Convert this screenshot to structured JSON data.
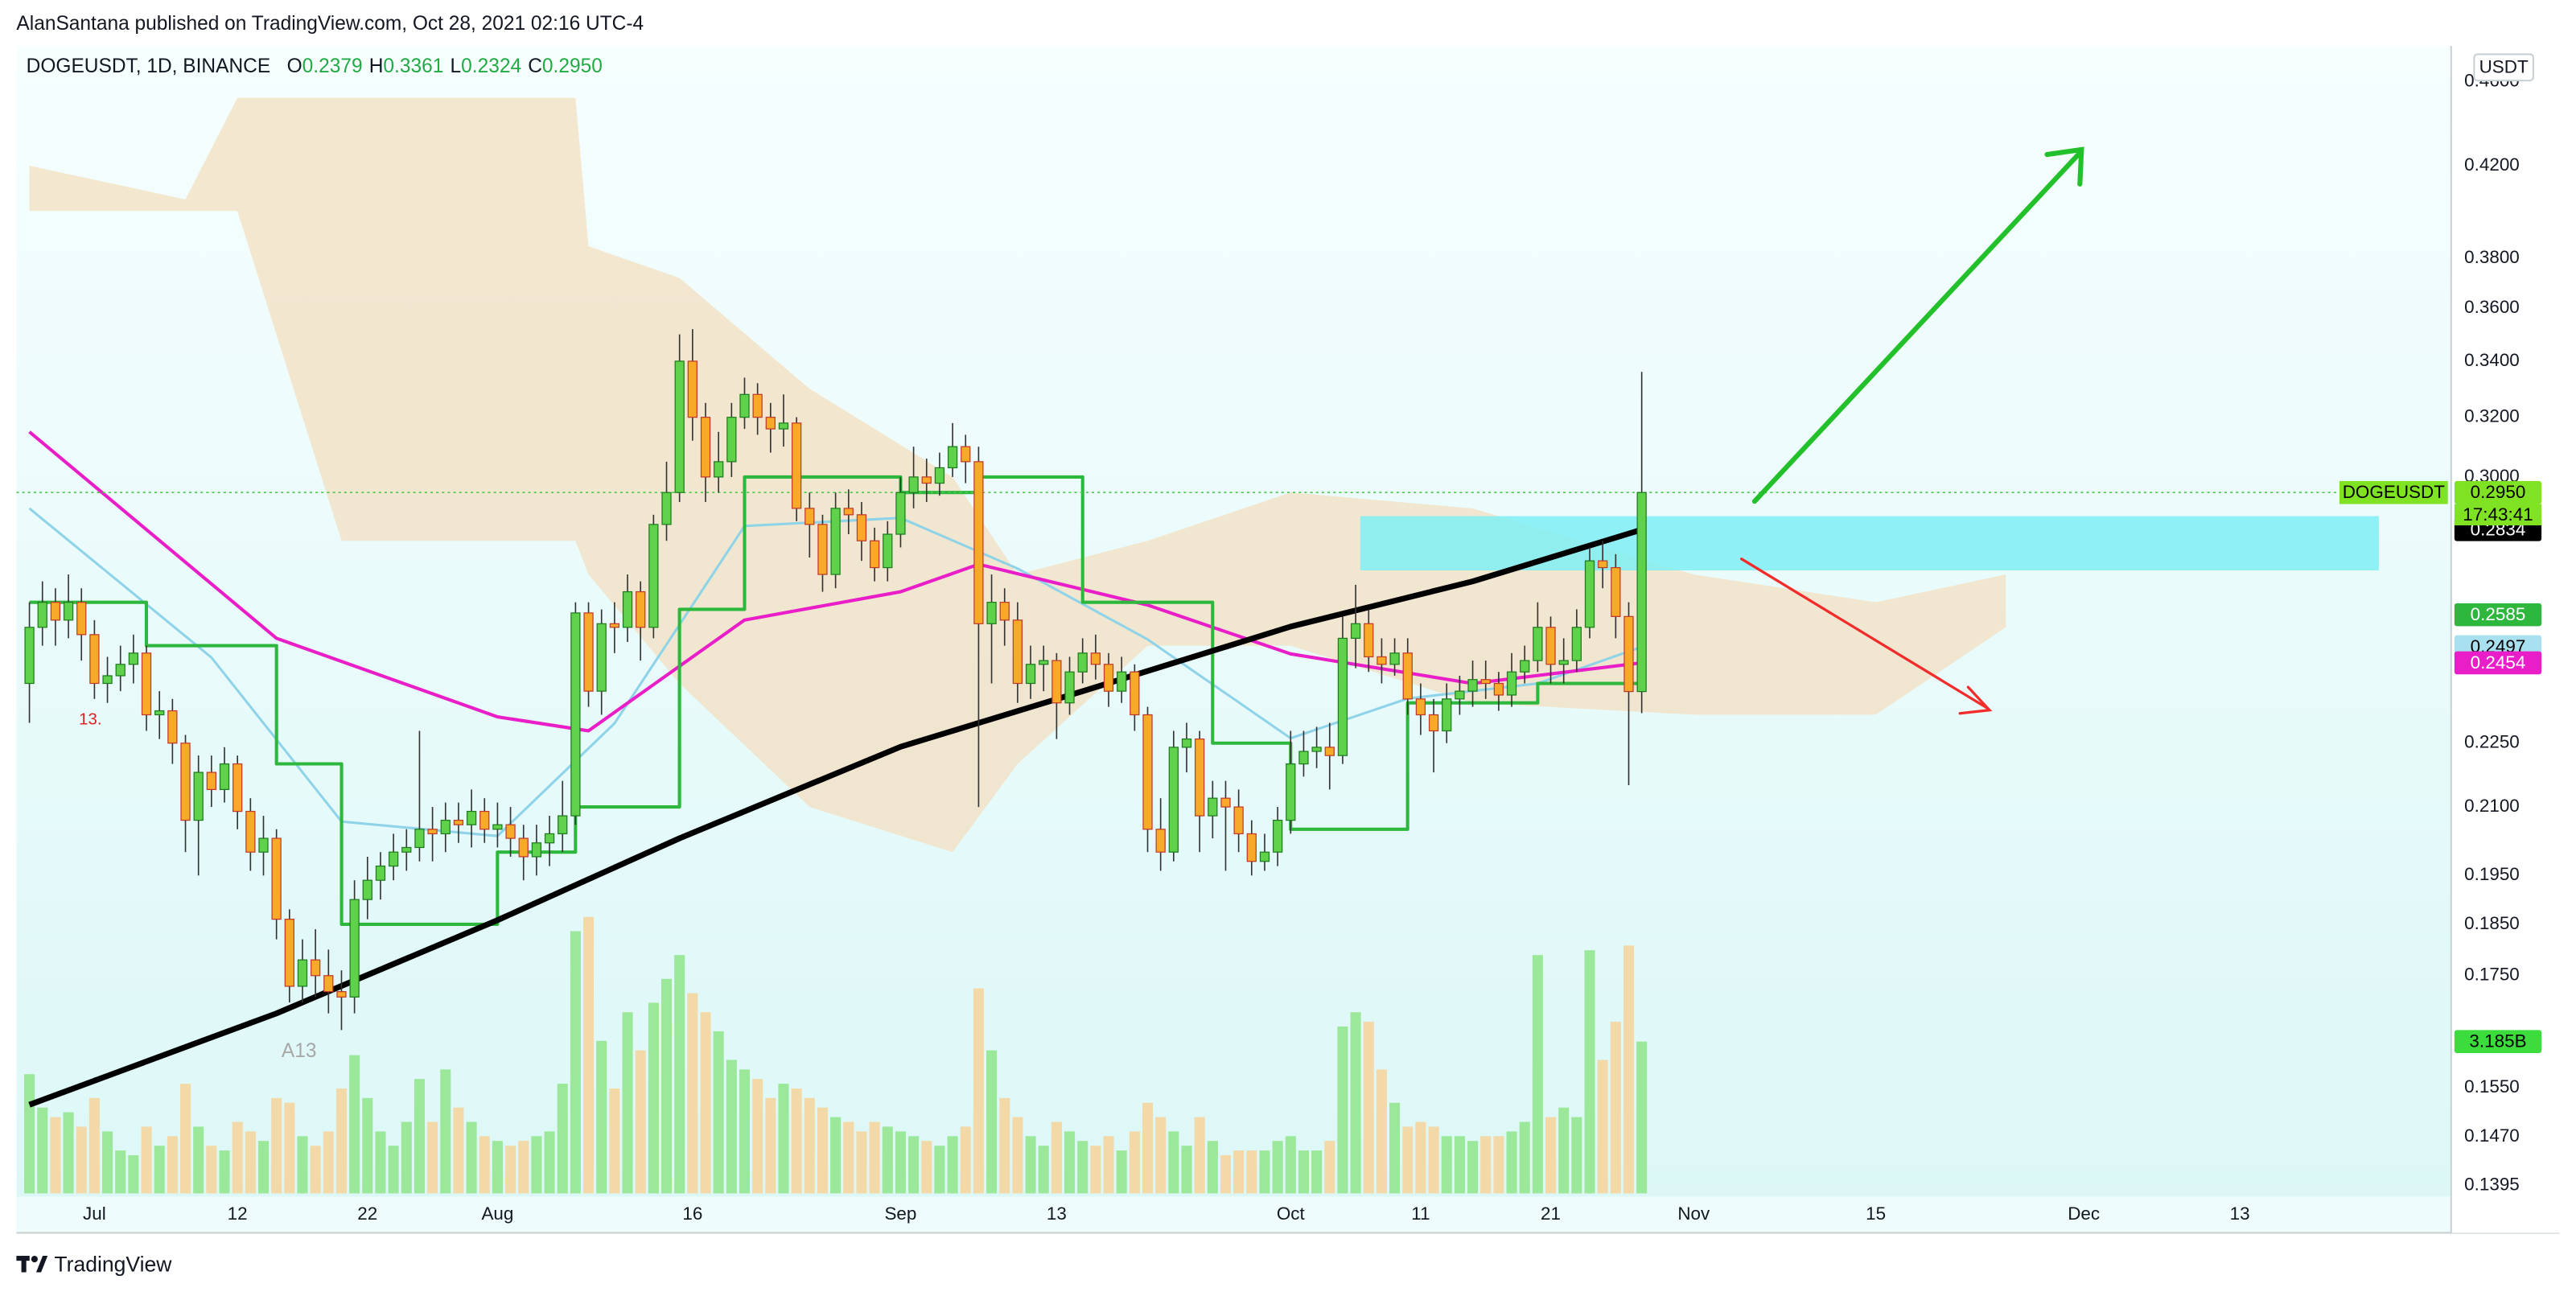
{
  "header": {
    "publisher": "AlanSantana published on TradingView.com, Oct 28, 2021 02:16 UTC-4",
    "symbol": "DOGEUSDT, 1D, BINANCE",
    "ohlc": [
      {
        "key": "O",
        "label": "0.2379"
      },
      {
        "key": "H",
        "label": "0.3361"
      },
      {
        "key": "L",
        "label": "0.2324"
      },
      {
        "key": "C",
        "label": "0.2950"
      }
    ]
  },
  "chart_data": {
    "type": "candlestick",
    "axis_unit": "USDT",
    "x": [
      "2021-06-26",
      "2021-06-27",
      "2021-06-28",
      "2021-06-29",
      "2021-06-30",
      "2021-07-01",
      "2021-07-02",
      "2021-07-03",
      "2021-07-04",
      "2021-07-05",
      "2021-07-06",
      "2021-07-07",
      "2021-07-08",
      "2021-07-09",
      "2021-07-10",
      "2021-07-11",
      "2021-07-12",
      "2021-07-13",
      "2021-07-14",
      "2021-07-15",
      "2021-07-16",
      "2021-07-17",
      "2021-07-18",
      "2021-07-19",
      "2021-07-20",
      "2021-07-21",
      "2021-07-22",
      "2021-07-23",
      "2021-07-24",
      "2021-07-25",
      "2021-07-26",
      "2021-07-27",
      "2021-07-28",
      "2021-07-29",
      "2021-07-30",
      "2021-07-31",
      "2021-08-01",
      "2021-08-02",
      "2021-08-03",
      "2021-08-04",
      "2021-08-05",
      "2021-08-06",
      "2021-08-07",
      "2021-08-08",
      "2021-08-09",
      "2021-08-10",
      "2021-08-11",
      "2021-08-12",
      "2021-08-13",
      "2021-08-14",
      "2021-08-15",
      "2021-08-16",
      "2021-08-17",
      "2021-08-18",
      "2021-08-19",
      "2021-08-20",
      "2021-08-21",
      "2021-08-22",
      "2021-08-23",
      "2021-08-24",
      "2021-08-25",
      "2021-08-26",
      "2021-08-27",
      "2021-08-28",
      "2021-08-29",
      "2021-08-30",
      "2021-08-31",
      "2021-09-01",
      "2021-09-02",
      "2021-09-03",
      "2021-09-04",
      "2021-09-05",
      "2021-09-06",
      "2021-09-07",
      "2021-09-08",
      "2021-09-09",
      "2021-09-10",
      "2021-09-11",
      "2021-09-12",
      "2021-09-13",
      "2021-09-14",
      "2021-09-15",
      "2021-09-16",
      "2021-09-17",
      "2021-09-18",
      "2021-09-19",
      "2021-09-20",
      "2021-09-21",
      "2021-09-22",
      "2021-09-23",
      "2021-09-24",
      "2021-09-25",
      "2021-09-26",
      "2021-09-27",
      "2021-09-28",
      "2021-09-29",
      "2021-09-30",
      "2021-10-01",
      "2021-10-02",
      "2021-10-03",
      "2021-10-04",
      "2021-10-05",
      "2021-10-06",
      "2021-10-07",
      "2021-10-08",
      "2021-10-09",
      "2021-10-10",
      "2021-10-11",
      "2021-10-12",
      "2021-10-13",
      "2021-10-14",
      "2021-10-15",
      "2021-10-16",
      "2021-10-17",
      "2021-10-18",
      "2021-10-19",
      "2021-10-20",
      "2021-10-21",
      "2021-10-22",
      "2021-10-23",
      "2021-10-24",
      "2021-10-25",
      "2021-10-26",
      "2021-10-27",
      "2021-10-28"
    ],
    "open": [
      0.24,
      0.255,
      0.262,
      0.257,
      0.262,
      0.253,
      0.24,
      0.242,
      0.245,
      0.248,
      0.232,
      0.233,
      0.225,
      0.207,
      0.218,
      0.214,
      0.22,
      0.209,
      0.2,
      0.203,
      0.186,
      0.173,
      0.178,
      0.175,
      0.172,
      0.171,
      0.19,
      0.194,
      0.197,
      0.2,
      0.201,
      0.205,
      0.204,
      0.207,
      0.206,
      0.209,
      0.205,
      0.206,
      0.203,
      0.199,
      0.202,
      0.204,
      0.208,
      0.259,
      0.238,
      0.256,
      0.255,
      0.265,
      0.255,
      0.285,
      0.295,
      0.34,
      0.32,
      0.3,
      0.305,
      0.32,
      0.328,
      0.32,
      0.316,
      0.318,
      0.29,
      0.285,
      0.27,
      0.29,
      0.288,
      0.28,
      0.272,
      0.282,
      0.295,
      0.3,
      0.298,
      0.303,
      0.31,
      0.305,
      0.256,
      0.262,
      0.257,
      0.24,
      0.245,
      0.246,
      0.235,
      0.243,
      0.248,
      0.245,
      0.238,
      0.243,
      0.232,
      0.205,
      0.2,
      0.224,
      0.226,
      0.208,
      0.212,
      0.21,
      0.204,
      0.198,
      0.2,
      0.207,
      0.22,
      0.223,
      0.224,
      0.222,
      0.252,
      0.256,
      0.247,
      0.245,
      0.248,
      0.236,
      0.232,
      0.228,
      0.236,
      0.238,
      0.241,
      0.24,
      0.237,
      0.243,
      0.246,
      0.255,
      0.245,
      0.246,
      0.255,
      0.274,
      0.272,
      0.258,
      0.2379
    ],
    "high": [
      0.262,
      0.268,
      0.266,
      0.27,
      0.266,
      0.257,
      0.247,
      0.25,
      0.253,
      0.25,
      0.238,
      0.236,
      0.227,
      0.222,
      0.222,
      0.224,
      0.222,
      0.212,
      0.208,
      0.205,
      0.188,
      0.182,
      0.184,
      0.18,
      0.176,
      0.194,
      0.199,
      0.2,
      0.204,
      0.205,
      0.228,
      0.21,
      0.211,
      0.211,
      0.214,
      0.212,
      0.211,
      0.21,
      0.206,
      0.206,
      0.208,
      0.216,
      0.262,
      0.262,
      0.26,
      0.262,
      0.27,
      0.268,
      0.288,
      0.305,
      0.35,
      0.352,
      0.325,
      0.315,
      0.325,
      0.334,
      0.332,
      0.325,
      0.328,
      0.32,
      0.295,
      0.288,
      0.295,
      0.296,
      0.292,
      0.284,
      0.286,
      0.3,
      0.31,
      0.306,
      0.308,
      0.318,
      0.314,
      0.31,
      0.27,
      0.266,
      0.262,
      0.25,
      0.25,
      0.248,
      0.247,
      0.252,
      0.253,
      0.248,
      0.247,
      0.245,
      0.234,
      0.212,
      0.228,
      0.23,
      0.228,
      0.216,
      0.216,
      0.214,
      0.207,
      0.204,
      0.21,
      0.228,
      0.228,
      0.229,
      0.23,
      0.258,
      0.267,
      0.26,
      0.252,
      0.252,
      0.252,
      0.24,
      0.236,
      0.24,
      0.242,
      0.246,
      0.246,
      0.243,
      0.248,
      0.25,
      0.262,
      0.258,
      0.252,
      0.26,
      0.278,
      0.28,
      0.276,
      0.262,
      0.3361
    ],
    "low": [
      0.23,
      0.25,
      0.25,
      0.252,
      0.246,
      0.236,
      0.235,
      0.238,
      0.24,
      0.228,
      0.226,
      0.22,
      0.2,
      0.195,
      0.21,
      0.211,
      0.205,
      0.196,
      0.195,
      0.182,
      0.17,
      0.17,
      0.171,
      0.168,
      0.165,
      0.168,
      0.186,
      0.19,
      0.194,
      0.196,
      0.198,
      0.198,
      0.2,
      0.202,
      0.201,
      0.202,
      0.201,
      0.199,
      0.194,
      0.195,
      0.197,
      0.2,
      0.206,
      0.234,
      0.232,
      0.248,
      0.251,
      0.246,
      0.252,
      0.28,
      0.292,
      0.312,
      0.292,
      0.295,
      0.3,
      0.316,
      0.314,
      0.308,
      0.31,
      0.286,
      0.275,
      0.265,
      0.266,
      0.282,
      0.274,
      0.268,
      0.268,
      0.278,
      0.29,
      0.292,
      0.294,
      0.3,
      0.298,
      0.21,
      0.24,
      0.25,
      0.235,
      0.236,
      0.238,
      0.226,
      0.232,
      0.24,
      0.241,
      0.234,
      0.235,
      0.228,
      0.2,
      0.196,
      0.198,
      0.218,
      0.2,
      0.203,
      0.196,
      0.2,
      0.195,
      0.196,
      0.197,
      0.204,
      0.217,
      0.219,
      0.214,
      0.22,
      0.244,
      0.243,
      0.24,
      0.242,
      0.232,
      0.227,
      0.218,
      0.225,
      0.232,
      0.234,
      0.236,
      0.233,
      0.234,
      0.24,
      0.243,
      0.24,
      0.24,
      0.243,
      0.252,
      0.266,
      0.252,
      0.215,
      0.2324
    ],
    "close": [
      0.255,
      0.262,
      0.257,
      0.262,
      0.253,
      0.24,
      0.242,
      0.245,
      0.248,
      0.232,
      0.233,
      0.225,
      0.207,
      0.218,
      0.214,
      0.22,
      0.209,
      0.2,
      0.203,
      0.186,
      0.173,
      0.178,
      0.175,
      0.172,
      0.171,
      0.19,
      0.194,
      0.197,
      0.2,
      0.201,
      0.205,
      0.204,
      0.207,
      0.206,
      0.209,
      0.205,
      0.206,
      0.203,
      0.199,
      0.202,
      0.204,
      0.208,
      0.259,
      0.238,
      0.256,
      0.255,
      0.265,
      0.255,
      0.285,
      0.295,
      0.34,
      0.32,
      0.3,
      0.305,
      0.32,
      0.328,
      0.32,
      0.316,
      0.318,
      0.29,
      0.285,
      0.27,
      0.29,
      0.288,
      0.28,
      0.272,
      0.282,
      0.295,
      0.3,
      0.298,
      0.303,
      0.31,
      0.305,
      0.256,
      0.262,
      0.257,
      0.24,
      0.245,
      0.246,
      0.235,
      0.243,
      0.248,
      0.245,
      0.238,
      0.243,
      0.232,
      0.205,
      0.2,
      0.224,
      0.226,
      0.208,
      0.212,
      0.21,
      0.204,
      0.198,
      0.2,
      0.207,
      0.22,
      0.223,
      0.224,
      0.222,
      0.252,
      0.256,
      0.247,
      0.245,
      0.248,
      0.236,
      0.232,
      0.228,
      0.236,
      0.238,
      0.241,
      0.24,
      0.237,
      0.243,
      0.246,
      0.255,
      0.245,
      0.246,
      0.255,
      0.274,
      0.272,
      0.258,
      0.2379,
      0.295
    ],
    "up_color": "#5fd14a",
    "down_color": "#f7a928",
    "up_border": "#1e7a1e",
    "down_border": "#c0392b",
    "wick_color": "#333333",
    "ylim": [
      0.1383,
      0.4763
    ],
    "log_scale": true,
    "grid": false,
    "yticks": [
      0.1395,
      {
        "value": 0.147,
        "label": "0.1470"
      },
      {
        "value": 0.155,
        "label": "0.1550"
      },
      {
        "value": 0.175,
        "label": "0.1750"
      },
      {
        "value": 0.185,
        "label": "0.1850"
      },
      {
        "value": 0.195,
        "label": "0.1950"
      },
      {
        "value": 0.21,
        "label": "0.2100"
      },
      {
        "value": 0.225,
        "label": "0.2250"
      },
      {
        "value": 0.3,
        "label": "0.3000"
      },
      {
        "value": 0.32,
        "label": "0.3200"
      },
      {
        "value": 0.34,
        "label": "0.3400"
      },
      {
        "value": 0.36,
        "label": "0.3600"
      },
      {
        "value": 0.38,
        "label": "0.3800"
      },
      {
        "value": 0.42,
        "label": "0.4200"
      },
      {
        "value": 0.46,
        "label": "0.4600"
      }
    ],
    "xlim": [
      "2021-06-25",
      "2021-12-29"
    ],
    "xticks": [
      {
        "value": "2021-07-01",
        "label": "Jul"
      },
      {
        "value": "2021-07-12",
        "label": "12"
      },
      {
        "value": "2021-07-22",
        "label": "22"
      },
      {
        "value": "2021-08-01",
        "label": "Aug"
      },
      {
        "value": "2021-08-16",
        "label": "16"
      },
      {
        "value": "2021-09-01",
        "label": "Sep"
      },
      {
        "value": "2021-09-13",
        "label": "13"
      },
      {
        "value": "2021-10-01",
        "label": "Oct"
      },
      {
        "value": "2021-10-11",
        "label": "11"
      },
      {
        "value": "2021-10-21",
        "label": "21"
      },
      {
        "value": "2021-11-01",
        "label": "Nov"
      },
      {
        "value": "2021-11-15",
        "label": "15"
      },
      {
        "value": "2021-12-01",
        "label": "Dec"
      },
      {
        "value": "2021-12-13",
        "label": "13"
      }
    ],
    "last_price": {
      "name": "DOGEUSDT",
      "label": "0.2950",
      "countdown": "17:43:41",
      "color": "#7fe324"
    },
    "volume": {
      "values": [
        2.5,
        1.8,
        1.6,
        1.7,
        1.4,
        2.0,
        1.3,
        0.9,
        0.8,
        1.4,
        1.0,
        1.2,
        2.3,
        1.4,
        1.0,
        0.9,
        1.5,
        1.3,
        1.1,
        2.0,
        1.9,
        1.2,
        1.0,
        1.3,
        2.2,
        2.9,
        2.0,
        1.3,
        1.0,
        1.5,
        2.4,
        1.5,
        2.6,
        1.8,
        1.5,
        1.2,
        1.1,
        1.0,
        1.1,
        1.2,
        1.3,
        2.3,
        5.5,
        5.8,
        3.2,
        2.2,
        3.8,
        3.0,
        4.0,
        4.5,
        5.0,
        4.2,
        3.8,
        3.4,
        2.8,
        2.6,
        2.4,
        2.0,
        2.3,
        2.2,
        2.0,
        1.8,
        1.6,
        1.5,
        1.3,
        1.5,
        1.4,
        1.3,
        1.2,
        1.1,
        1.0,
        1.2,
        1.4,
        4.3,
        3.0,
        2.0,
        1.6,
        1.2,
        1.0,
        1.5,
        1.3,
        1.1,
        1.0,
        1.2,
        0.9,
        1.3,
        1.9,
        1.6,
        1.3,
        1.0,
        1.6,
        1.1,
        0.8,
        0.9,
        0.9,
        0.9,
        1.1,
        1.2,
        0.9,
        0.9,
        1.1,
        3.5,
        3.8,
        3.6,
        2.6,
        1.9,
        1.4,
        1.5,
        1.4,
        1.2,
        1.2,
        1.1,
        1.2,
        1.2,
        1.3,
        1.5,
        5.0,
        1.6,
        1.8,
        1.6,
        5.1,
        2.8,
        3.6,
        5.2,
        3.185
      ],
      "last_label": "3.185B",
      "vlim": [
        0,
        24
      ],
      "up_color": "#9be89a",
      "down_color": "#f3d9a8",
      "label_color": "#3ddc3d"
    },
    "lines": [
      {
        "color": "#8fd3e8",
        "label_text_color": "#000000",
        "last_label": "0.2497",
        "x": [
          "2021-06-26",
          "2021-07-10",
          "2021-07-20",
          "2021-08-01",
          "2021-08-10",
          "2021-08-20",
          "2021-09-01",
          "2021-09-10",
          "2021-09-20",
          "2021-10-01",
          "2021-10-10",
          "2021-10-20",
          "2021-10-28"
        ],
        "values": [
          0.29,
          0.2468,
          0.2067,
          0.2035,
          0.2299,
          0.2845,
          0.287,
          0.2717,
          0.2517,
          0.2262,
          0.2361,
          0.24,
          0.2497
        ]
      },
      {
        "color": "#e91ec8",
        "label_text_color": "#ffffff",
        "last_label": "0.2454",
        "x": [
          "2021-06-26",
          "2021-07-15",
          "2021-08-01",
          "2021-08-08",
          "2021-08-20",
          "2021-09-01",
          "2021-09-07",
          "2021-09-20",
          "2021-10-01",
          "2021-10-15",
          "2021-10-28"
        ],
        "values": [
          0.315,
          0.252,
          0.2315,
          0.228,
          0.257,
          0.265,
          0.273,
          0.2612,
          0.2478,
          0.24,
          0.2454
        ]
      },
      {
        "color": "#2db83d",
        "label_text_color": "#ffffff",
        "last_label": "0.2585",
        "step": true,
        "x": [
          "2021-06-26",
          "2021-07-05",
          "2021-07-15",
          "2021-07-20",
          "2021-08-01",
          "2021-08-07",
          "2021-08-15",
          "2021-08-20",
          "2021-09-01",
          "2021-09-07",
          "2021-09-15",
          "2021-09-25",
          "2021-10-01",
          "2021-10-10",
          "2021-10-20",
          "2021-10-28"
        ],
        "values": [
          0.262,
          0.25,
          0.22,
          0.185,
          0.2,
          0.21,
          0.26,
          0.3,
          0.295,
          0.3,
          0.262,
          0.225,
          0.205,
          0.235,
          0.24,
          0.2585
        ]
      },
      {
        "color": "#000000",
        "label_text_color": "#ffffff",
        "last_label": "0.2834",
        "x": [
          "2021-06-26",
          "2021-07-15",
          "2021-08-01",
          "2021-08-15",
          "2021-09-01",
          "2021-09-15",
          "2021-10-01",
          "2021-10-15",
          "2021-10-28"
        ],
        "values": [
          0.1522,
          0.168,
          0.1858,
          0.203,
          0.2241,
          0.238,
          0.2552,
          0.268,
          0.2834
        ]
      }
    ],
    "cloud": {
      "color": "#f3dfc0",
      "x": [
        "2021-06-26",
        "2021-07-08",
        "2021-07-12",
        "2021-07-20",
        "2021-08-07",
        "2021-08-08",
        "2021-08-15",
        "2021-08-25",
        "2021-09-05",
        "2021-09-10",
        "2021-09-20",
        "2021-10-01",
        "2021-10-15",
        "2021-11-01",
        "2021-11-15",
        "2021-11-25"
      ],
      "upper": [
        0.42,
        0.405,
        0.452,
        0.452,
        0.452,
        0.385,
        0.372,
        0.33,
        0.3,
        0.27,
        0.28,
        0.295,
        0.29,
        0.27,
        0.262,
        0.27
      ],
      "lower": [
        0.4,
        0.4,
        0.4,
        0.28,
        0.28,
        0.27,
        0.24,
        0.21,
        0.2,
        0.22,
        0.25,
        0.25,
        0.235,
        0.232,
        0.232,
        0.255
      ]
    },
    "annotations": [
      "A13",
      "13."
    ]
  },
  "footer": {
    "brand": "TradingView"
  }
}
